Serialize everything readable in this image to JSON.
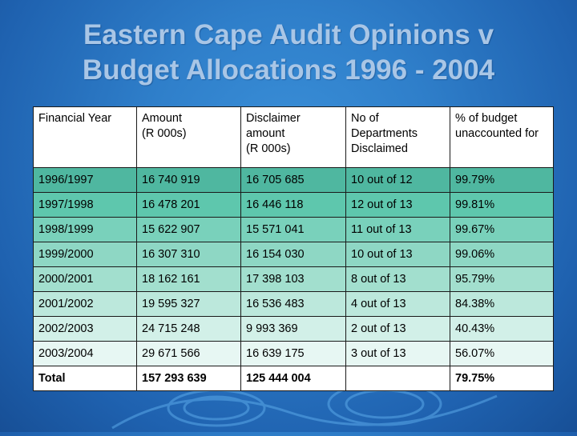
{
  "title": {
    "line1": "Eastern Cape Audit Opinions v",
    "line2": "Budget Allocations 1996 - 2004"
  },
  "table": {
    "headers": [
      "Financial Year",
      "Amount\n(R 000s)",
      "Disclaimer\namount\n(R 000s)",
      "No of\nDepartments\nDisclaimed",
      "% of budget\nunaccounted for"
    ],
    "rows": [
      [
        "1996/1997",
        "16 740 919",
        "16 705 685",
        "10 out of 12",
        "99.79%"
      ],
      [
        "1997/1998",
        "16 478 201",
        "16 446 118",
        "12 out of 13",
        "99.81%"
      ],
      [
        "1998/1999",
        "15 622 907",
        "15 571 041",
        "11 out of 13",
        "99.67%"
      ],
      [
        "1999/2000",
        "16 307 310",
        "16 154 030",
        "10 out of 13",
        "99.06%"
      ],
      [
        "2000/2001",
        "18 162 161",
        "17 398 103",
        "8 out of 13",
        "95.79%"
      ],
      [
        "2001/2002",
        "19 595 327",
        "16 536 483",
        "4 out of 13",
        "84.38%"
      ],
      [
        "2002/2003",
        "24 715 248",
        "9 993 369",
        "2 out of 13",
        "40.43%"
      ],
      [
        "2003/2004",
        "29 671 566",
        "16 639 175",
        "3 out of 13",
        "56.07%"
      ]
    ],
    "total": [
      "Total",
      "157 293 639",
      "125 444 004",
      "",
      "79.75%"
    ]
  }
}
